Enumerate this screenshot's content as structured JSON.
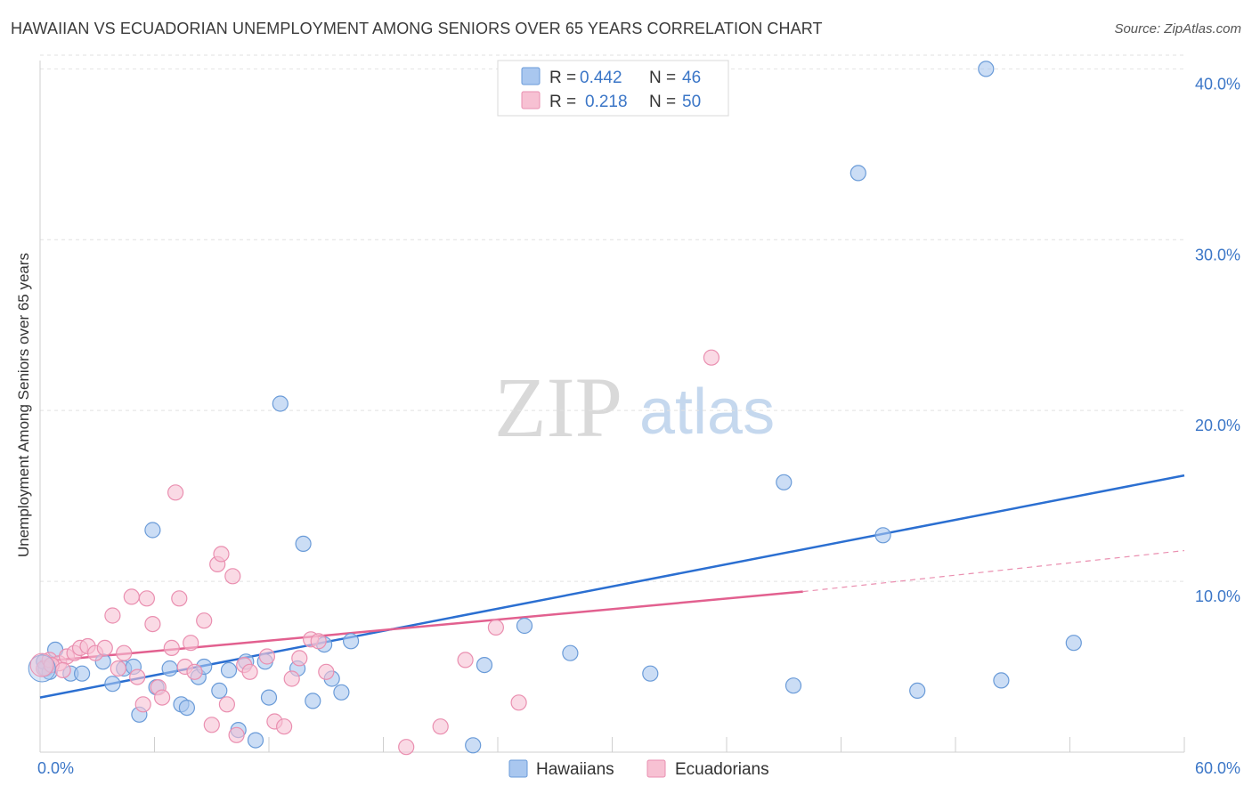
{
  "header": {
    "title": "HAWAIIAN VS ECUADORIAN UNEMPLOYMENT AMONG SENIORS OVER 65 YEARS CORRELATION CHART",
    "source": "Source: ZipAtlas.com"
  },
  "watermark": {
    "zip": "ZIP",
    "atlas": "atlas"
  },
  "legend": {
    "rows": [
      {
        "r_label": "R =",
        "r_value": "0.442",
        "n_label": "N =",
        "n_value": "46"
      },
      {
        "r_label": "R =",
        "r_value": "0.218",
        "n_label": "N =",
        "n_value": "50"
      }
    ]
  },
  "colors": {
    "hawaiians_fill": "#a9c7ef",
    "hawaiians_stroke": "#6a9bd8",
    "hawaiians_line": "#2b6fd1",
    "ecuadorians_fill": "#f7c1d3",
    "ecuadorians_stroke": "#ea8fb0",
    "ecuadorians_line": "#e2608f",
    "tick_text": "#3b76c7",
    "grid": "#e2e2e2"
  },
  "chart_data": {
    "type": "scatter",
    "title": "HAWAIIAN VS ECUADORIAN UNEMPLOYMENT AMONG SENIORS OVER 65 YEARS CORRELATION CHART",
    "xlabel": "",
    "ylabel": "Unemployment Among Seniors over 65 years",
    "xlim": [
      0,
      60
    ],
    "ylim": [
      0,
      40.8
    ],
    "x_tick_labels": [
      "0.0%",
      "60.0%"
    ],
    "y_ticks": [
      10,
      20,
      30,
      40
    ],
    "y_tick_labels": [
      "10.0%",
      "20.0%",
      "30.0%",
      "40.0%"
    ],
    "grid": true,
    "legend_position": "top-center",
    "series": [
      {
        "name": "Hawaiians",
        "R": 0.442,
        "N": 46,
        "trend": {
          "x": [
            0,
            60
          ],
          "y": [
            3.2,
            16.2
          ],
          "dashed_extension": false
        },
        "points": [
          [
            0.3,
            4.9
          ],
          [
            0.8,
            6.0
          ],
          [
            1.6,
            4.6
          ],
          [
            2.2,
            4.6
          ],
          [
            3.3,
            5.3
          ],
          [
            3.8,
            4.0
          ],
          [
            4.4,
            4.9
          ],
          [
            4.9,
            5.0
          ],
          [
            5.2,
            2.2
          ],
          [
            5.9,
            13.0
          ],
          [
            6.1,
            3.8
          ],
          [
            6.8,
            4.9
          ],
          [
            7.4,
            2.8
          ],
          [
            7.7,
            2.6
          ],
          [
            8.3,
            4.4
          ],
          [
            8.6,
            5.0
          ],
          [
            9.4,
            3.6
          ],
          [
            9.9,
            4.8
          ],
          [
            10.4,
            1.3
          ],
          [
            10.8,
            5.3
          ],
          [
            11.3,
            0.7
          ],
          [
            11.8,
            5.3
          ],
          [
            12.0,
            3.2
          ],
          [
            12.6,
            20.4
          ],
          [
            13.5,
            4.9
          ],
          [
            13.8,
            12.2
          ],
          [
            14.3,
            3.0
          ],
          [
            14.9,
            6.3
          ],
          [
            15.3,
            4.3
          ],
          [
            15.8,
            3.5
          ],
          [
            16.3,
            6.5
          ],
          [
            22.7,
            0.4
          ],
          [
            23.3,
            5.1
          ],
          [
            25.4,
            7.4
          ],
          [
            27.8,
            5.8
          ],
          [
            32.0,
            4.6
          ],
          [
            39.0,
            15.8
          ],
          [
            39.5,
            3.9
          ],
          [
            42.9,
            33.9
          ],
          [
            44.2,
            12.7
          ],
          [
            46.0,
            3.6
          ],
          [
            49.6,
            40.0
          ],
          [
            50.4,
            4.2
          ],
          [
            54.2,
            6.4
          ],
          [
            0.2,
            5.3
          ],
          [
            0.5,
            4.7
          ]
        ]
      },
      {
        "name": "Ecuadorians",
        "R": 0.218,
        "N": 50,
        "trend": {
          "x": [
            0,
            40
          ],
          "y": [
            5.3,
            9.4
          ],
          "dashed_extension": {
            "x": [
              40,
              60
            ],
            "y": [
              9.4,
              11.8
            ]
          }
        },
        "points": [
          [
            0.2,
            4.9
          ],
          [
            0.5,
            5.4
          ],
          [
            1.0,
            5.2
          ],
          [
            1.4,
            5.6
          ],
          [
            1.8,
            5.8
          ],
          [
            2.1,
            6.1
          ],
          [
            2.5,
            6.2
          ],
          [
            2.9,
            5.8
          ],
          [
            3.4,
            6.1
          ],
          [
            3.8,
            8.0
          ],
          [
            4.1,
            4.9
          ],
          [
            4.4,
            5.8
          ],
          [
            4.8,
            9.1
          ],
          [
            5.1,
            4.4
          ],
          [
            5.4,
            2.8
          ],
          [
            5.6,
            9.0
          ],
          [
            5.9,
            7.5
          ],
          [
            6.2,
            3.8
          ],
          [
            6.4,
            3.2
          ],
          [
            6.9,
            6.1
          ],
          [
            7.1,
            15.2
          ],
          [
            7.3,
            9.0
          ],
          [
            7.6,
            5.0
          ],
          [
            7.9,
            6.4
          ],
          [
            8.1,
            4.7
          ],
          [
            8.6,
            7.7
          ],
          [
            9.0,
            1.6
          ],
          [
            9.3,
            11.0
          ],
          [
            9.5,
            11.6
          ],
          [
            9.8,
            2.8
          ],
          [
            10.1,
            10.3
          ],
          [
            10.3,
            1.0
          ],
          [
            10.7,
            5.1
          ],
          [
            11.0,
            4.7
          ],
          [
            11.9,
            5.6
          ],
          [
            12.3,
            1.8
          ],
          [
            12.8,
            1.5
          ],
          [
            13.2,
            4.3
          ],
          [
            13.6,
            5.5
          ],
          [
            14.2,
            6.6
          ],
          [
            14.6,
            6.5
          ],
          [
            15.0,
            4.7
          ],
          [
            19.2,
            0.3
          ],
          [
            21.0,
            1.5
          ],
          [
            22.3,
            5.4
          ],
          [
            23.9,
            7.3
          ],
          [
            25.1,
            2.9
          ],
          [
            35.2,
            23.1
          ],
          [
            0.6,
            5.1
          ],
          [
            1.2,
            4.8
          ]
        ]
      }
    ]
  },
  "bottom_legend": {
    "items": [
      "Hawaiians",
      "Ecuadorians"
    ]
  }
}
